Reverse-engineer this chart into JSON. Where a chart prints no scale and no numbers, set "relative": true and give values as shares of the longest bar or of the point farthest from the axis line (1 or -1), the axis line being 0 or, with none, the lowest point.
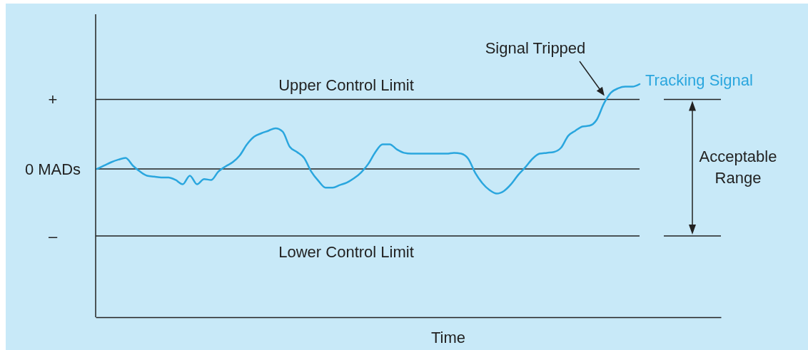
{
  "chart_data": {
    "type": "line",
    "relative": true,
    "categories": [
      null,
      null,
      null,
      null,
      null,
      null,
      null,
      null,
      null,
      null,
      null,
      null,
      null,
      null,
      null,
      null,
      null,
      null,
      null,
      null,
      null,
      null,
      null,
      null,
      null,
      null,
      null,
      null,
      null,
      null,
      null,
      null,
      null,
      null,
      null,
      null,
      null,
      null,
      null,
      null,
      null,
      null,
      null,
      null,
      null,
      null,
      null,
      null,
      null,
      null,
      null,
      null,
      null,
      null,
      null,
      null,
      null,
      null,
      null,
      null,
      null,
      null,
      null,
      null,
      null,
      null,
      null,
      null,
      null,
      null,
      null,
      null,
      null,
      null,
      null,
      null,
      null
    ],
    "series": [
      {
        "name": "Tracking Signal",
        "color": "#2aa6de",
        "values": [
          0,
          0.04,
          0.08,
          0.11,
          0.13,
          0.04,
          -0.03,
          -0.08,
          -0.09,
          -0.1,
          -0.1,
          -0.13,
          -0.18,
          -0.08,
          -0.18,
          -0.12,
          -0.13,
          -0.03,
          0.03,
          0.08,
          0.16,
          0.29,
          0.38,
          0.42,
          0.45,
          0.48,
          0.44,
          0.26,
          0.2,
          0.13,
          -0.03,
          -0.14,
          -0.22,
          -0.22,
          -0.19,
          -0.16,
          -0.11,
          -0.04,
          0.06,
          0.2,
          0.29,
          0.29,
          0.23,
          0.19,
          0.18,
          0.18,
          0.18,
          0.18,
          0.18,
          0.18,
          0.19,
          0.18,
          0.12,
          -0.05,
          -0.17,
          -0.25,
          -0.29,
          -0.26,
          -0.18,
          -0.07,
          0.02,
          0.12,
          0.18,
          0.19,
          0.2,
          0.25,
          0.39,
          0.45,
          0.5,
          0.51,
          0.58,
          0.77,
          0.9,
          0.95,
          0.97,
          0.97,
          1
        ]
      }
    ],
    "ref_lines": [
      {
        "axis": "y",
        "value": 0.82,
        "label": "Upper Control Limit",
        "color": "#222222"
      },
      {
        "axis": "y",
        "value": 0,
        "label": null,
        "color": "#222222"
      },
      {
        "axis": "y",
        "value": -0.79,
        "label": "Lower Control Limit",
        "color": "#222222"
      }
    ],
    "annotations": [
      "+",
      "0 MADs",
      "–",
      "Signal Tripped",
      "Acceptable Range",
      "Time"
    ],
    "legend": false,
    "marker": "none",
    "line_style": "solid"
  }
}
